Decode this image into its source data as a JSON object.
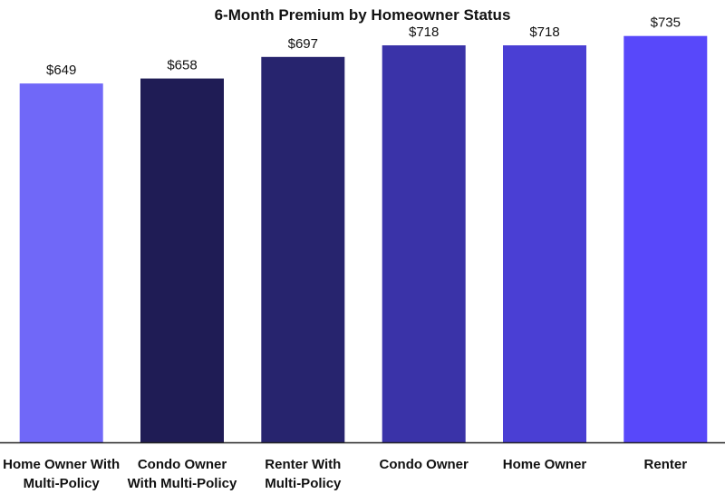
{
  "chart_data": {
    "type": "bar",
    "title": "6-Month Premium by Homeowner Status",
    "xlabel": "",
    "ylabel": "",
    "ylim": [
      0,
      800
    ],
    "grid": false,
    "legend": "none",
    "categories": [
      [
        "Home Owner With",
        "Multi-Policy"
      ],
      [
        "Condo Owner",
        "With Multi-Policy"
      ],
      [
        "Renter With",
        "Multi-Policy"
      ],
      [
        "Condo Owner"
      ],
      [
        "Home Owner"
      ],
      [
        "Renter"
      ]
    ],
    "values": [
      649,
      658,
      697,
      718,
      718,
      735
    ],
    "value_labels": [
      "$649",
      "$658",
      "$697",
      "$718",
      "$718",
      "$735"
    ],
    "colors": [
      "#7068f8",
      "#1f1c55",
      "#27246e",
      "#3a33a8",
      "#4a3fd4",
      "#5848fa"
    ],
    "axis_color": "#222222"
  }
}
